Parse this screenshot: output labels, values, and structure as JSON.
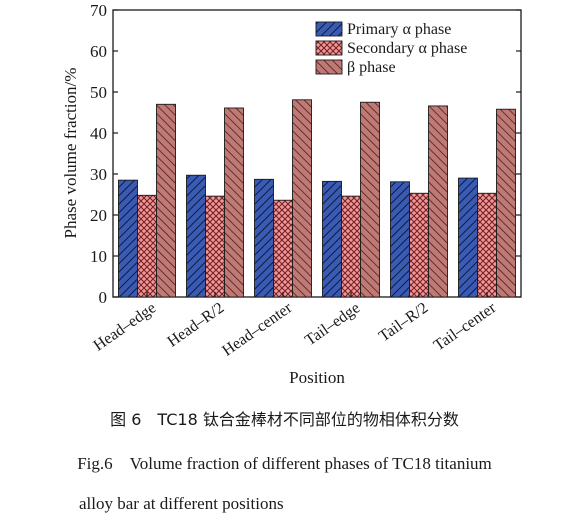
{
  "chart_data": {
    "type": "bar",
    "categories": [
      "Head–edge",
      "Head–R/2",
      "Head–center",
      "Tail–edge",
      "Tail–R/2",
      "Tail–center"
    ],
    "series": [
      {
        "name": "Primary α phase",
        "values": [
          28.5,
          29.7,
          28.7,
          28.2,
          28.1,
          29.0
        ],
        "color": "#3a5bb4"
      },
      {
        "name": "Secondary α phase",
        "values": [
          24.8,
          24.6,
          23.6,
          24.6,
          25.3,
          25.3
        ],
        "color": "#e08585"
      },
      {
        "name": "β phase",
        "values": [
          47.0,
          46.1,
          48.1,
          47.5,
          46.6,
          45.8
        ],
        "color": "#b36a66"
      }
    ],
    "xlabel": "Position",
    "ylabel": "Phase volume fraction/%",
    "ylim": [
      0,
      70
    ],
    "yticks": [
      0,
      10,
      20,
      30,
      40,
      50,
      60,
      70
    ],
    "grid": false,
    "legend_position": "top-right"
  },
  "caption": {
    "cn": "图 6　TC18 钛合金棒材不同部位的物相体积分数",
    "en_line1": "Fig.6　Volume fraction of different phases of TC18 titanium",
    "en_line2": "alloy bar at different positions"
  }
}
